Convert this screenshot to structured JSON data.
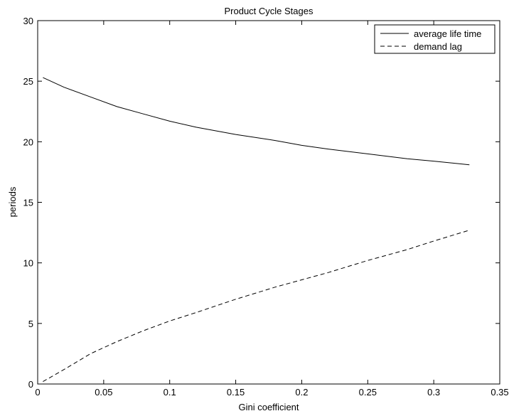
{
  "chart_data": {
    "type": "line",
    "title": "Product Cycle Stages",
    "xlabel": "Gini coefficient",
    "ylabel": "periods",
    "xlim": [
      0,
      0.35
    ],
    "ylim": [
      0,
      30
    ],
    "xticks": [
      0,
      0.05,
      0.1,
      0.15,
      0.2,
      0.25,
      0.3,
      0.35
    ],
    "yticks": [
      0,
      5,
      10,
      15,
      20,
      25,
      30
    ],
    "xtick_labels": [
      "0",
      "0.05",
      "0.1",
      "0.15",
      "0.2",
      "0.25",
      "0.3",
      "0.35"
    ],
    "ytick_labels": [
      "0",
      "5",
      "10",
      "15",
      "20",
      "25",
      "30"
    ],
    "grid": false,
    "legend_position": "top-right",
    "series": [
      {
        "name": "average life time",
        "line_style": "solid",
        "color": "#000000",
        "x": [
          0.004,
          0.02,
          0.04,
          0.06,
          0.08,
          0.1,
          0.12,
          0.15,
          0.18,
          0.2,
          0.22,
          0.25,
          0.28,
          0.3,
          0.327
        ],
        "y": [
          25.3,
          24.5,
          23.7,
          22.9,
          22.3,
          21.7,
          21.2,
          20.6,
          20.1,
          19.7,
          19.4,
          19.0,
          18.6,
          18.4,
          18.1
        ]
      },
      {
        "name": "demand lag",
        "line_style": "dashed",
        "color": "#000000",
        "x": [
          0.004,
          0.02,
          0.04,
          0.06,
          0.08,
          0.1,
          0.12,
          0.15,
          0.18,
          0.2,
          0.22,
          0.25,
          0.28,
          0.3,
          0.327
        ],
        "y": [
          0.2,
          1.2,
          2.5,
          3.5,
          4.4,
          5.2,
          5.9,
          7.0,
          8.0,
          8.6,
          9.2,
          10.2,
          11.1,
          11.8,
          12.7
        ]
      }
    ]
  }
}
